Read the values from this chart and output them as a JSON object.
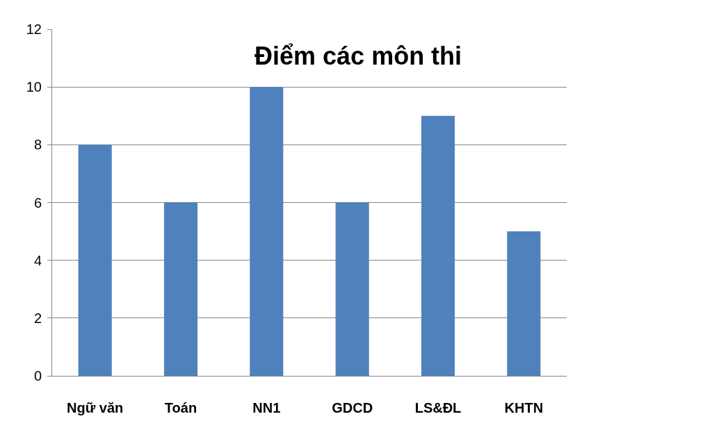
{
  "chart_data": {
    "type": "bar",
    "title": "Điểm các môn thi",
    "categories": [
      "Ngữ văn",
      "Toán",
      "NN1",
      "GDCD",
      "LS&ĐL",
      "KHTN"
    ],
    "values": [
      8,
      6,
      10,
      6,
      9,
      5
    ],
    "color": "#4f81bd",
    "ylim": [
      0,
      12
    ],
    "yticks": [
      0,
      2,
      4,
      6,
      8,
      10,
      12
    ],
    "grid": "y"
  }
}
